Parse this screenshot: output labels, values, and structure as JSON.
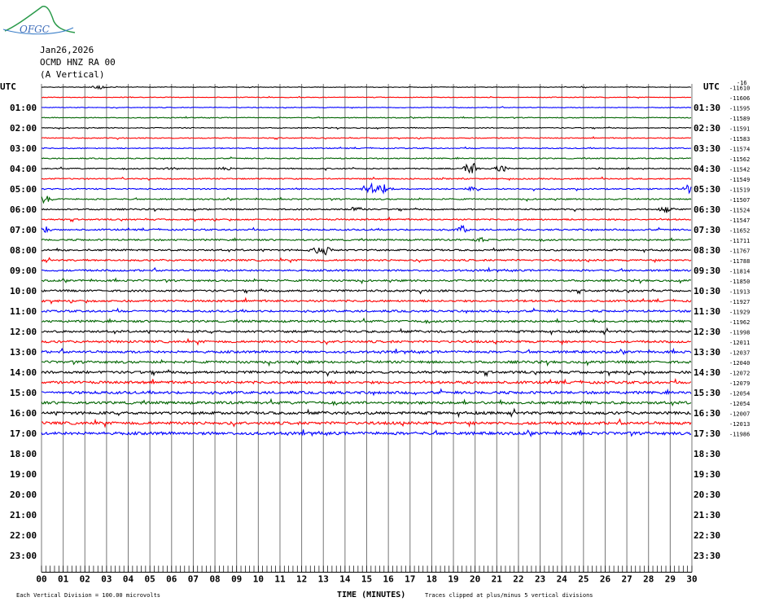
{
  "logo": {
    "text": "OFGC"
  },
  "header": {
    "date": "Jan26,2026",
    "station": "OCMD HNZ RA 00",
    "component": "(A Vertical)"
  },
  "footer": {
    "division_note": "Each Vertical Division =  100.00 microvolts",
    "xlabel": "TIME (MINUTES)",
    "clip_note": "Traces clipped at plus/minus 5 vertical divisions"
  },
  "chart_data": {
    "type": "line",
    "title": "",
    "xlabel": "TIME (MINUTES)",
    "xlim": [
      0,
      30
    ],
    "x_ticks": [
      "00",
      "01",
      "02",
      "03",
      "04",
      "05",
      "06",
      "07",
      "08",
      "09",
      "10",
      "11",
      "12",
      "13",
      "14",
      "15",
      "16",
      "17",
      "18",
      "19",
      "20",
      "21",
      "22",
      "23",
      "24",
      "25",
      "26",
      "27",
      "28",
      "29",
      "30"
    ],
    "left_axis_title": "UTC",
    "right_axis_title": "UTC",
    "right_top_label": "-16",
    "left_labels": [
      "",
      "01:00",
      "02:00",
      "03:00",
      "04:00",
      "05:00",
      "06:00",
      "07:00",
      "08:00",
      "09:00",
      "10:00",
      "11:00",
      "12:00",
      "13:00",
      "14:00",
      "15:00",
      "16:00",
      "17:00",
      "18:00",
      "19:00",
      "20:00",
      "21:00",
      "22:00",
      "23:00"
    ],
    "right_labels": [
      "",
      "01:30",
      "02:30",
      "03:30",
      "04:30",
      "05:30",
      "06:30",
      "07:30",
      "08:30",
      "09:30",
      "10:30",
      "11:30",
      "12:30",
      "13:30",
      "14:30",
      "15:30",
      "16:30",
      "17:30",
      "18:30",
      "19:30",
      "20:30",
      "21:30",
      "22:30",
      "23:30"
    ],
    "offsets": [
      -11610,
      -11606,
      -11595,
      -11589,
      -11591,
      -11583,
      -11574,
      -11562,
      -11542,
      -11549,
      -11519,
      -11507,
      -11524,
      -11547,
      -11652,
      -11711,
      -11767,
      -11788,
      -11814,
      -11850,
      -11913,
      -11927,
      -11929,
      -11962,
      -11998,
      -12011,
      -12037,
      -12040,
      -12072,
      -12079,
      -12054,
      -12054,
      -12007,
      -12013,
      -11986
    ],
    "trace_colors": [
      "#000000",
      "#ff0000",
      "#0000ff",
      "#006400"
    ],
    "total_trace_rows": 48,
    "traces_recorded": 35,
    "vertical_division": "100.00 microvolts",
    "events": [
      {
        "row": 0,
        "minute": 2.6,
        "amplitude": 3
      },
      {
        "row": 8,
        "minute": 5.9,
        "amplitude": 2
      },
      {
        "row": 8,
        "minute": 8.6,
        "amplitude": 3
      },
      {
        "row": 8,
        "minute": 19.8,
        "amplitude": 9
      },
      {
        "row": 8,
        "minute": 21.2,
        "amplitude": 5
      },
      {
        "row": 10,
        "minute": 15.2,
        "amplitude": 9
      },
      {
        "row": 10,
        "minute": 15.8,
        "amplitude": 6
      },
      {
        "row": 10,
        "minute": 19.8,
        "amplitude": 5
      },
      {
        "row": 10,
        "minute": 29.9,
        "amplitude": 6
      },
      {
        "row": 11,
        "minute": 0.2,
        "amplitude": 5
      },
      {
        "row": 12,
        "minute": 14.5,
        "amplitude": 4
      },
      {
        "row": 12,
        "minute": 28.8,
        "amplitude": 4
      },
      {
        "row": 14,
        "minute": 0.2,
        "amplitude": 4
      },
      {
        "row": 14,
        "minute": 19.4,
        "amplitude": 5
      },
      {
        "row": 15,
        "minute": 20.2,
        "amplitude": 3
      },
      {
        "row": 16,
        "minute": 13.0,
        "amplitude": 8
      },
      {
        "row": 16,
        "minute": 12.7,
        "amplitude": 4
      }
    ]
  }
}
